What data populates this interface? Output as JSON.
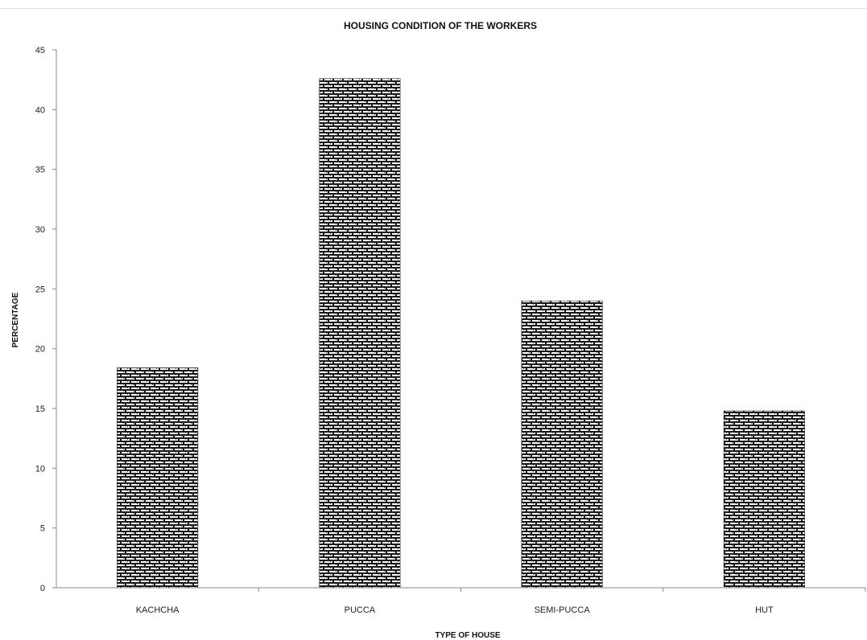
{
  "chart_data": {
    "type": "bar",
    "title": "HOUSING CONDITION OF THE WORKERS",
    "xlabel": "TYPE OF HOUSE",
    "ylabel": "PERCENTAGE",
    "categories": [
      "KACHCHA",
      "PUCCA",
      "SEMI-PUCCA",
      "HUT"
    ],
    "values": [
      18.4,
      42.6,
      24.0,
      14.8
    ],
    "ylim": [
      0,
      45
    ],
    "yticks": [
      0,
      5,
      10,
      15,
      20,
      25,
      30,
      35,
      40,
      45
    ],
    "grid": false,
    "legend": "none",
    "bar_pattern": "brick",
    "colors": {
      "bar_dark": "#1a1a1a",
      "bar_light": "#ffffff",
      "axis": "#888888"
    }
  }
}
